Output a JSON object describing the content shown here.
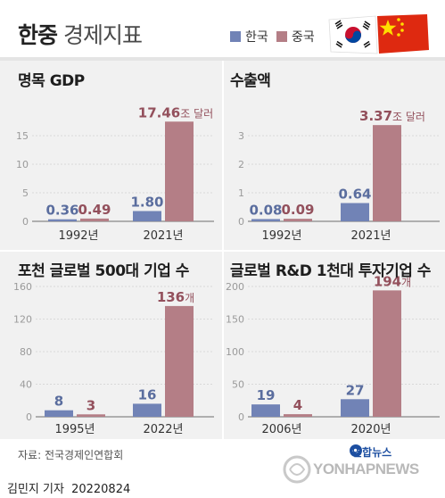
{
  "header": {
    "title_bold": "한중",
    "title_light": "경제지표",
    "legend": [
      {
        "label": "한국",
        "color": "#7183b6"
      },
      {
        "label": "중국",
        "color": "#b47e86"
      }
    ]
  },
  "colors": {
    "korea": "#7183b6",
    "china": "#b47e86",
    "korea_text": "#5a6d9e",
    "china_text": "#93505c",
    "axis_text": "#9a9a9a",
    "grid": "#d9d9d9"
  },
  "chart_data": [
    {
      "type": "bar",
      "title": "명목 GDP",
      "categories": [
        "1992년",
        "2021년"
      ],
      "series": [
        {
          "name": "한국",
          "values": [
            0.36,
            1.8
          ],
          "labels": [
            "0.36",
            "1.80"
          ]
        },
        {
          "name": "중국",
          "values": [
            0.49,
            17.46
          ],
          "labels": [
            "0.49",
            "17.46"
          ]
        }
      ],
      "unit_label": "조 달러",
      "ylim": [
        0,
        20
      ],
      "yticks": [
        0,
        5,
        10,
        15
      ],
      "show_yticks": true
    },
    {
      "type": "bar",
      "title": "수출액",
      "categories": [
        "1992년",
        "2021년"
      ],
      "series": [
        {
          "name": "한국",
          "values": [
            0.08,
            0.64
          ],
          "labels": [
            "0.08",
            "0.64"
          ]
        },
        {
          "name": "중국",
          "values": [
            0.09,
            3.37
          ],
          "labels": [
            "0.09",
            "3.37"
          ]
        }
      ],
      "unit_label": "조 달러",
      "ylim": [
        0,
        4
      ],
      "yticks": [
        0,
        1,
        2,
        3
      ],
      "show_yticks": true
    },
    {
      "type": "bar",
      "title": "포천 글로벌 500대 기업 수",
      "categories": [
        "1995년",
        "2022년"
      ],
      "series": [
        {
          "name": "한국",
          "values": [
            8,
            16
          ],
          "labels": [
            "8",
            "16"
          ]
        },
        {
          "name": "중국",
          "values": [
            3,
            136
          ],
          "labels": [
            "3",
            "136"
          ]
        }
      ],
      "unit_label": "개",
      "ylim": [
        0,
        160
      ],
      "yticks": [
        0,
        40,
        80,
        120,
        160
      ],
      "show_yticks": true
    },
    {
      "type": "bar",
      "title": "글로벌 R&D 1천대 투자기업 수",
      "categories": [
        "2006년",
        "2020년"
      ],
      "series": [
        {
          "name": "한국",
          "values": [
            19,
            27
          ],
          "labels": [
            "19",
            "27"
          ]
        },
        {
          "name": "중국",
          "values": [
            4,
            194
          ],
          "labels": [
            "4",
            "194"
          ]
        }
      ],
      "unit_label": "개",
      "ylim": [
        0,
        200
      ],
      "yticks": [
        0,
        50,
        100,
        150,
        200
      ],
      "show_yticks": true
    }
  ],
  "footer": {
    "source": "자료: 전국경제인연합회",
    "author": "김민지 기자",
    "date": "20220824",
    "logo_brand": "연합뉴스",
    "logo_word": "YONHAPNEWS"
  }
}
